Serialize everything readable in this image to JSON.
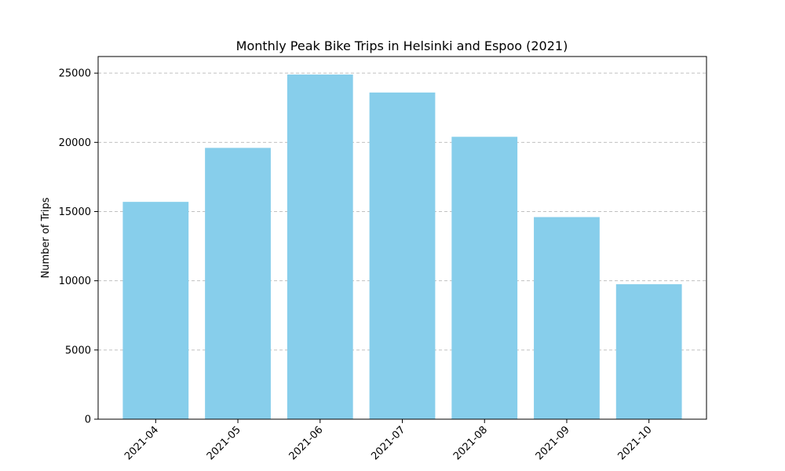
{
  "chart_data": {
    "type": "bar",
    "title": "Monthly Peak Bike Trips in Helsinki and Espoo (2021)",
    "xlabel": "",
    "ylabel": "Number of Trips",
    "categories": [
      "2021-04",
      "2021-05",
      "2021-06",
      "2021-07",
      "2021-08",
      "2021-09",
      "2021-10"
    ],
    "values": [
      15700,
      19600,
      24900,
      23600,
      20400,
      14600,
      9750
    ],
    "ylim": [
      0,
      26200
    ],
    "yticks": [
      0,
      5000,
      10000,
      15000,
      20000,
      25000
    ],
    "grid": "y-dashed",
    "bar_color": "#87CEEB",
    "grid_color": "#c0c0c0"
  }
}
